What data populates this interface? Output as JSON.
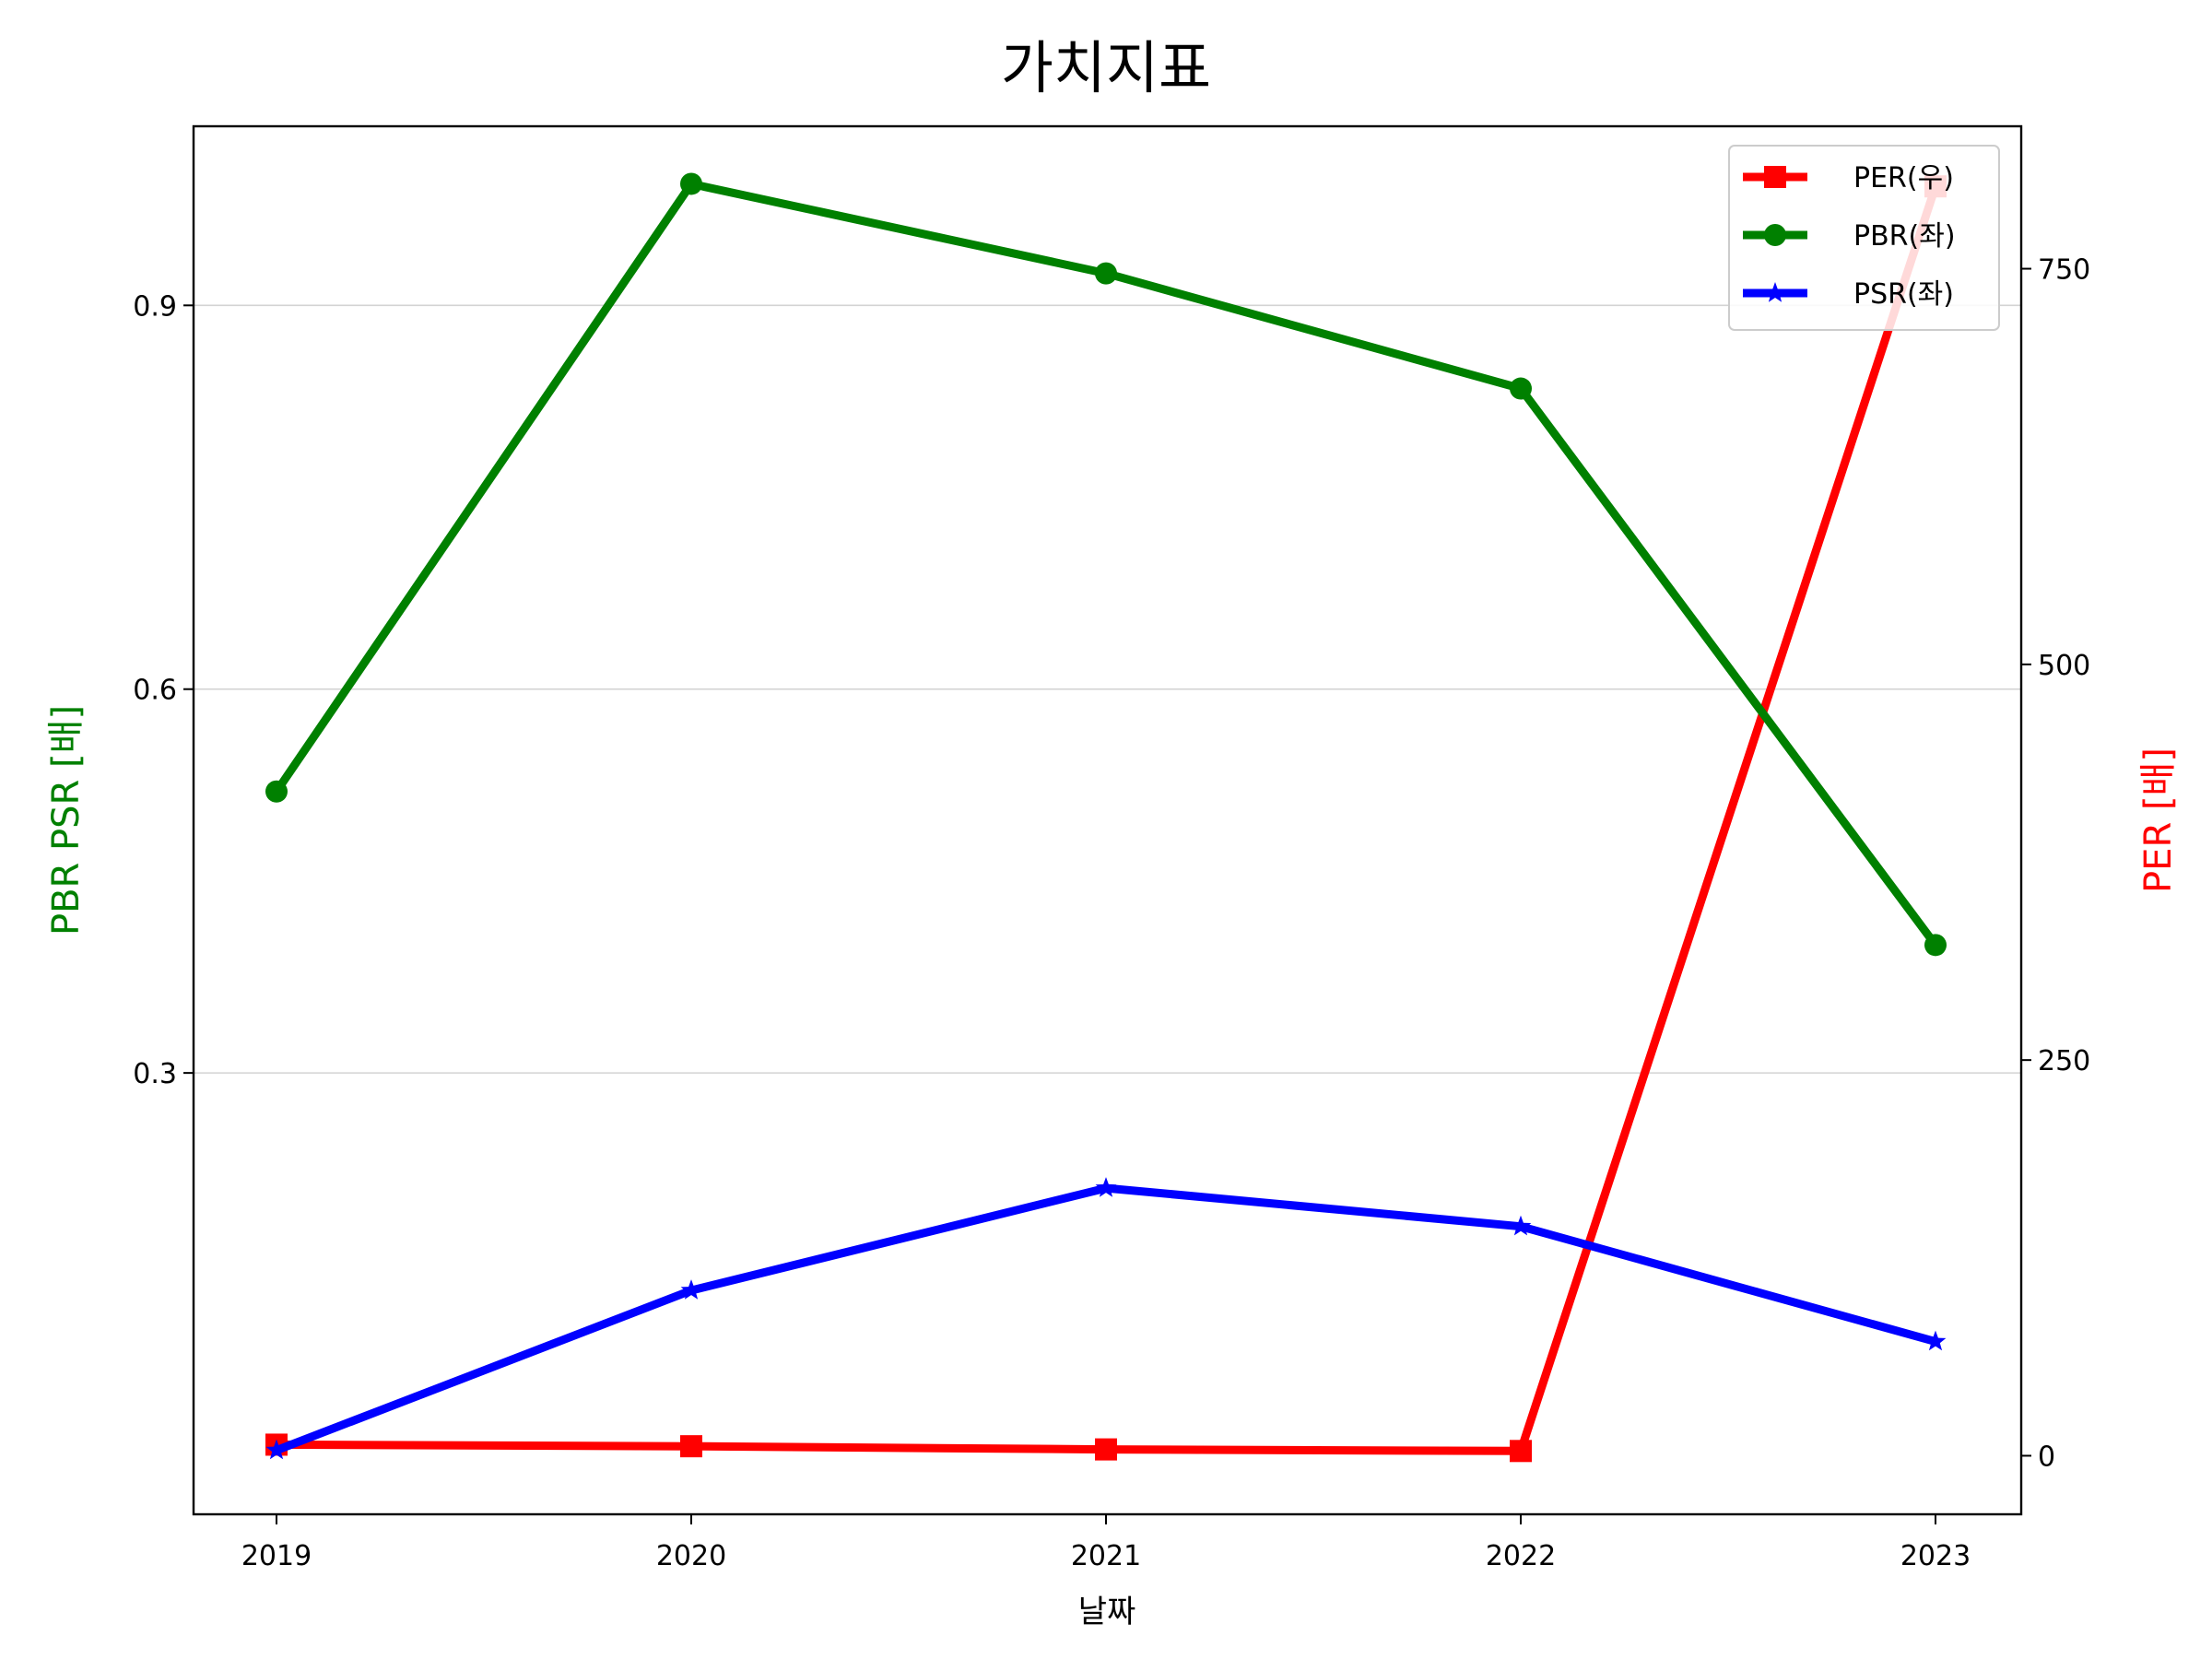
{
  "chart_data": {
    "type": "line",
    "title": "가치지표",
    "xlabel": "날짜",
    "ylabel_left": "PBR PSR [배]",
    "ylabel_right": "PER [배]",
    "categories": [
      "2019",
      "2020",
      "2021",
      "2022",
      "2023"
    ],
    "y_left": {
      "range": [
        -0.045,
        1.04
      ],
      "ticks": [
        0.3,
        0.6,
        0.9
      ],
      "tick_labels": [
        "0.3",
        "0.6",
        "0.9"
      ],
      "grid": true,
      "color": "#008000"
    },
    "y_right": {
      "range": [
        -37,
        840
      ],
      "ticks": [
        0,
        250,
        500,
        750
      ],
      "tick_labels": [
        "0",
        "250",
        "500",
        "750"
      ],
      "color": "#ff0000"
    },
    "series": [
      {
        "name": "PER(우)",
        "axis": "right",
        "color": "#ff0000",
        "marker": "square",
        "values": [
          7,
          6,
          4,
          3,
          802
        ]
      },
      {
        "name": "PBR(좌)",
        "axis": "left",
        "color": "#008000",
        "marker": "circle",
        "values": [
          0.52,
          0.995,
          0.925,
          0.835,
          0.4
        ]
      },
      {
        "name": "PSR(좌)",
        "axis": "left",
        "color": "#0000ff",
        "marker": "star",
        "values": [
          0.005,
          0.13,
          0.21,
          0.18,
          0.09
        ]
      }
    ],
    "legend": {
      "position": "top-right",
      "entries": [
        "PER(우)",
        "PBR(좌)",
        "PSR(좌)"
      ]
    }
  }
}
